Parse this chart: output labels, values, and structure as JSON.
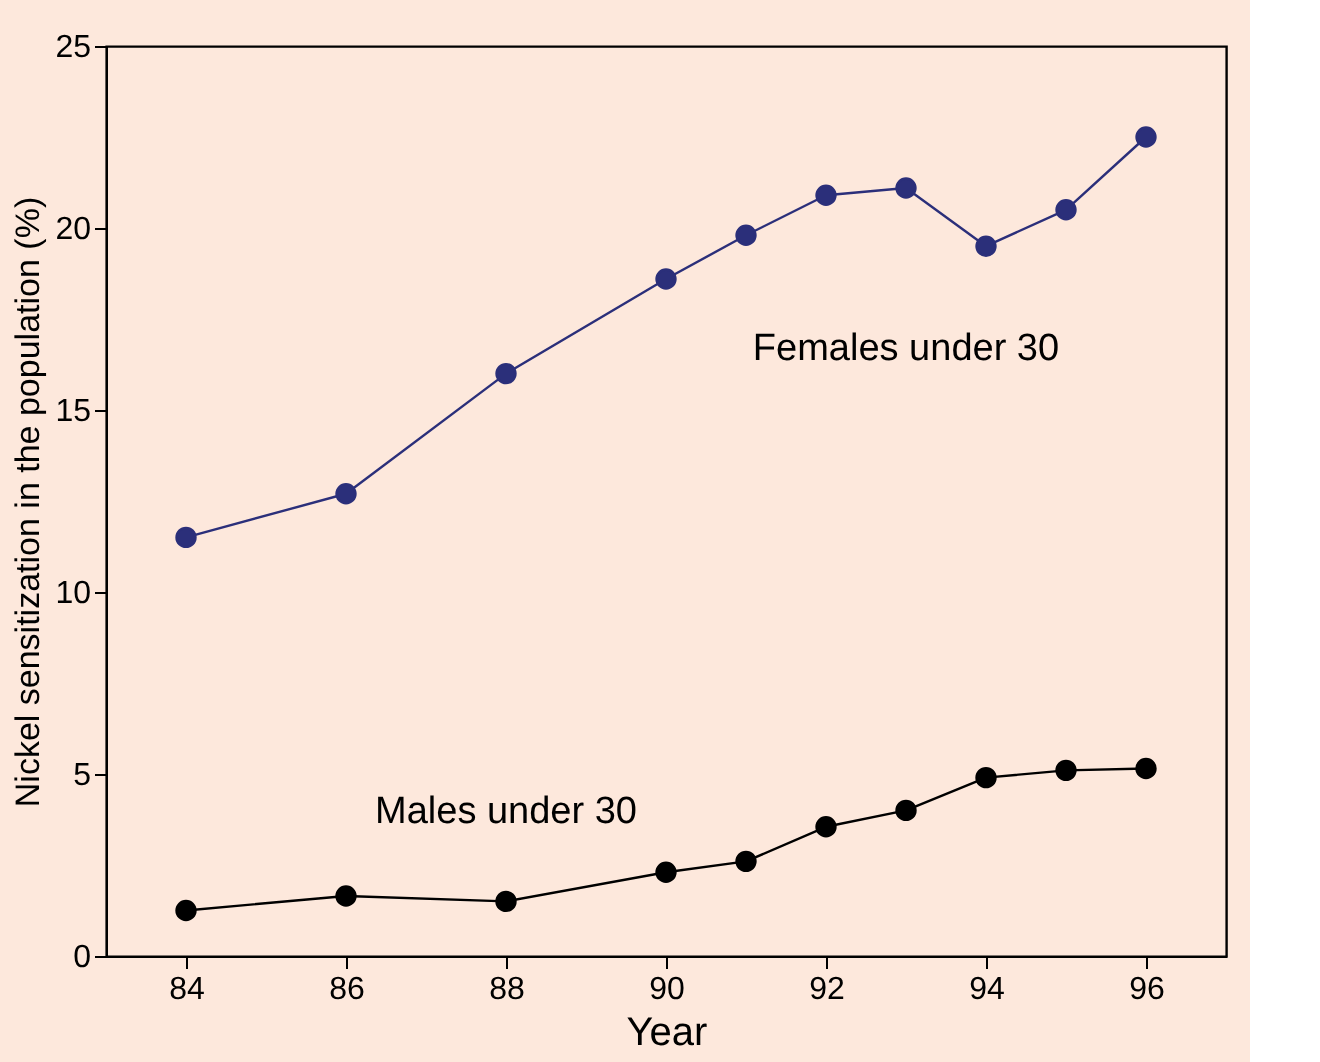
{
  "chart_data": {
    "type": "line",
    "xlabel": "Year",
    "ylabel": "Nickel sensitization in the population (%)",
    "x": [
      84,
      86,
      88,
      90,
      91,
      92,
      93,
      94,
      95,
      96
    ],
    "series": [
      {
        "name": "Females under 30",
        "color": "#2b2f7a",
        "values": [
          11.5,
          12.7,
          16.0,
          18.6,
          19.8,
          20.9,
          21.1,
          19.5,
          20.5,
          22.5
        ]
      },
      {
        "name": "Males under 30",
        "color": "#000000",
        "values": [
          1.25,
          1.65,
          1.5,
          2.3,
          2.6,
          3.55,
          4.0,
          4.9,
          5.1,
          5.15
        ]
      }
    ],
    "xlim": [
      83,
      97
    ],
    "xticks": [
      84,
      86,
      88,
      90,
      92,
      94,
      96
    ],
    "ylim": [
      0,
      25
    ],
    "yticks": [
      0,
      5,
      10,
      15,
      20,
      25
    ],
    "grid": false,
    "marker": "circle",
    "line_style": "solid"
  }
}
